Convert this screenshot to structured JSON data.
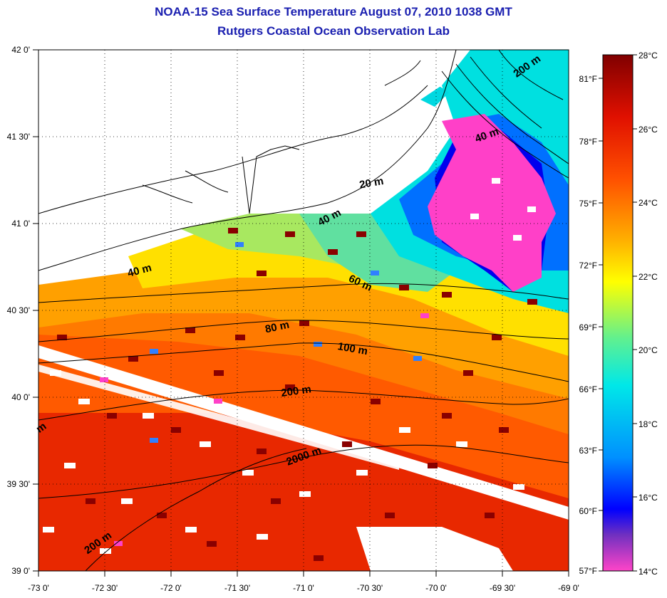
{
  "title": "NOAA-15 Sea Surface Temperature August 07, 2010 1038 GMT",
  "subtitle": "Rutgers Coastal Ocean Observation Lab",
  "colors": {
    "title": "#1a1fb0",
    "colormap": [
      "#ff44c8",
      "#7030c0",
      "#0000ff",
      "#0090ff",
      "#00e8e8",
      "#60f090",
      "#ffff00",
      "#ffb000",
      "#ff5000",
      "#e01000",
      "#800000"
    ]
  },
  "map": {
    "lon_labels": [
      "-73 0'",
      "-72 30'",
      "-72 0'",
      "-71 30'",
      "-71 0'",
      "-70 30'",
      "-70 0'",
      "-69 30'",
      "-69 0'"
    ],
    "lat_labels": [
      "42 0'",
      "41 30'",
      "41 0'",
      "40 30'",
      "40 0'",
      "39 30'",
      "39 0'"
    ],
    "lon_range": [
      -73,
      -69
    ],
    "lat_range": [
      39,
      42
    ],
    "grid": true
  },
  "contours": {
    "labels": [
      "200 m",
      "40 m",
      "20 m",
      "40 m",
      "40 m",
      "60 m",
      "80 m",
      "100 m",
      "200 m",
      "2000 m",
      "200 m",
      "m"
    ]
  },
  "colorbar": {
    "celsius_labels": [
      "28°C",
      "26°C",
      "24°C",
      "22°C",
      "20°C",
      "18°C",
      "16°C",
      "14°C"
    ],
    "fahrenheit_labels": [
      "81°F",
      "78°F",
      "75°F",
      "72°F",
      "69°F",
      "66°F",
      "63°F",
      "60°F",
      "57°F"
    ],
    "range_c": [
      14,
      28
    ]
  }
}
